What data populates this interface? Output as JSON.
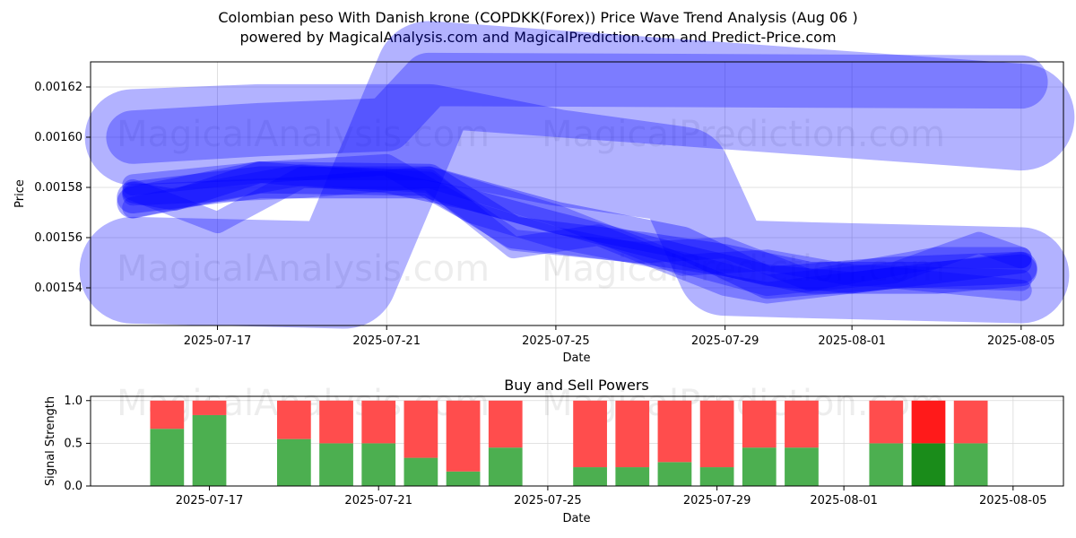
{
  "header": {
    "title": "Colombian peso With Danish krone (COPDKK(Forex)) Price Wave Trend Analysis (Aug 06 )",
    "subtitle": "powered by MagicalAnalysis.com and MagicalPrediction.com and Predict-Price.com"
  },
  "watermarks": [
    "MagicalAnalysis.com",
    "MagicalPrediction.com"
  ],
  "colors": {
    "wave": "#0000ff",
    "buy": "#4caf50",
    "buy_strong": "#1a8c1a",
    "sell": "#ff4d4d",
    "sell_strong": "#ff1a1a",
    "grid": "#d9d9d9"
  },
  "chart_data": [
    {
      "type": "line",
      "title": "",
      "xlabel": "Date",
      "ylabel": "Price",
      "x_ticks": [
        "2025-07-17",
        "2025-07-21",
        "2025-07-25",
        "2025-07-29",
        "2025-08-01",
        "2025-08-05"
      ],
      "y_ticks": [
        "0.00154",
        "0.00156",
        "0.00158",
        "0.00160",
        "0.00162"
      ],
      "xlim": [
        "2025-07-14",
        "2025-08-06"
      ],
      "ylim": [
        0.001525,
        0.00163
      ],
      "grid": true,
      "series": [
        {
          "x": [
            "2025-07-15",
            "2025-07-18",
            "2025-07-21",
            "2025-07-22",
            "2025-08-05"
          ],
          "y": [
            0.0016,
            0.001603,
            0.001605,
            0.001623,
            0.001622
          ],
          "width": 5,
          "opacity": 0.3
        },
        {
          "x": [
            "2025-07-15",
            "2025-07-20",
            "2025-07-22",
            "2025-08-05"
          ],
          "y": [
            0.001547,
            0.001545,
            0.001625,
            0.001608
          ],
          "width": 10,
          "opacity": 0.3
        },
        {
          "x": [
            "2025-07-15",
            "2025-07-18",
            "2025-07-22",
            "2025-07-25",
            "2025-07-28",
            "2025-07-29",
            "2025-07-31",
            "2025-08-05"
          ],
          "y": [
            0.0016,
            0.001602,
            0.001602,
            0.001592,
            0.001585,
            0.001548,
            0.001547,
            0.001545
          ],
          "width": 9,
          "opacity": 0.3
        },
        {
          "x": [
            "2025-07-15",
            "2025-07-18",
            "2025-07-22",
            "2025-07-25",
            "2025-07-28",
            "2025-07-30",
            "2025-08-02",
            "2025-08-05"
          ],
          "y": [
            0.001576,
            0.001582,
            0.001582,
            0.001568,
            0.001558,
            0.001542,
            0.001546,
            0.001548
          ],
          "width": 3,
          "opacity": 0.35
        },
        {
          "x": [
            "2025-07-15",
            "2025-07-18",
            "2025-07-22",
            "2025-07-24",
            "2025-07-27",
            "2025-07-29",
            "2025-07-31",
            "2025-08-03",
            "2025-08-05"
          ],
          "y": [
            0.001574,
            0.001584,
            0.001583,
            0.001562,
            0.001556,
            0.001551,
            0.001544,
            0.001544,
            0.001547
          ],
          "width": 3,
          "opacity": 0.35
        },
        {
          "x": [
            "2025-07-15",
            "2025-07-16",
            "2025-07-18",
            "2025-07-21",
            "2025-07-23",
            "2025-07-25",
            "2025-07-28",
            "2025-07-30",
            "2025-08-01",
            "2025-08-05"
          ],
          "y": [
            0.001578,
            0.001575,
            0.001586,
            0.001582,
            0.001575,
            0.001566,
            0.001553,
            0.001545,
            0.001542,
            0.00155
          ],
          "width": 2,
          "opacity": 0.35
        },
        {
          "x": [
            "2025-07-15",
            "2025-07-17",
            "2025-07-19",
            "2025-07-22",
            "2025-07-24",
            "2025-07-27",
            "2025-07-29",
            "2025-07-31",
            "2025-08-03",
            "2025-08-05"
          ],
          "y": [
            0.001572,
            0.001579,
            0.001585,
            0.001582,
            0.001559,
            0.001554,
            0.001556,
            0.001543,
            0.001552,
            0.001552
          ],
          "width": 2,
          "opacity": 0.3
        },
        {
          "x": [
            "2025-07-15",
            "2025-07-17",
            "2025-07-19",
            "2025-07-22",
            "2025-07-24",
            "2025-07-26",
            "2025-07-29",
            "2025-07-30",
            "2025-08-02",
            "2025-08-05"
          ],
          "y": [
            0.001579,
            0.001566,
            0.001584,
            0.001583,
            0.001556,
            0.001561,
            0.001541,
            0.001538,
            0.001544,
            0.001539
          ],
          "width": 2,
          "opacity": 0.3
        },
        {
          "x": [
            "2025-07-15",
            "2025-07-18",
            "2025-07-21",
            "2025-07-23",
            "2025-07-25",
            "2025-07-28",
            "2025-07-30",
            "2025-08-02",
            "2025-08-04",
            "2025-08-05"
          ],
          "y": [
            0.001581,
            0.001586,
            0.001589,
            0.00157,
            0.00156,
            0.00155,
            0.001541,
            0.001546,
            0.001558,
            0.001552
          ],
          "width": 2,
          "opacity": 0.3
        },
        {
          "x": [
            "2025-07-15",
            "2025-07-19",
            "2025-07-22",
            "2025-07-25",
            "2025-07-28",
            "2025-07-30",
            "2025-08-01",
            "2025-08-05"
          ],
          "y": [
            0.001577,
            0.00158,
            0.001584,
            0.001569,
            0.001549,
            0.001551,
            0.001545,
            0.001543
          ],
          "width": 2,
          "opacity": 0.3
        }
      ]
    },
    {
      "type": "bar",
      "title": "Buy and Sell Powers",
      "xlabel": "Date",
      "ylabel": "Signal Strength",
      "ylim": [
        0,
        1.05
      ],
      "y_ticks": [
        "0.0",
        "0.5",
        "1.0"
      ],
      "x_ticks": [
        "2025-07-17",
        "2025-07-21",
        "2025-07-25",
        "2025-07-29",
        "2025-08-01",
        "2025-08-05"
      ],
      "grid": true,
      "categories": [
        "2025-07-16",
        "2025-07-17",
        "2025-07-19",
        "2025-07-20",
        "2025-07-21",
        "2025-07-22",
        "2025-07-23",
        "2025-07-24",
        "2025-07-26",
        "2025-07-27",
        "2025-07-28",
        "2025-07-29",
        "2025-07-30",
        "2025-07-31",
        "2025-08-02",
        "2025-08-03",
        "2025-08-04"
      ],
      "series": [
        {
          "values": [
            0.67,
            0.83,
            0.55,
            0.5,
            0.5,
            0.33,
            0.17,
            0.45,
            0.22,
            0.22,
            0.28,
            0.22,
            0.45,
            0.45,
            0.5,
            0.5,
            0.5
          ]
        },
        {
          "values": [
            0.33,
            0.17,
            0.45,
            0.5,
            0.5,
            0.67,
            0.83,
            0.55,
            0.78,
            0.78,
            0.72,
            0.78,
            0.55,
            0.55,
            0.5,
            0.5,
            0.5
          ]
        }
      ],
      "strong_index": 15
    }
  ]
}
